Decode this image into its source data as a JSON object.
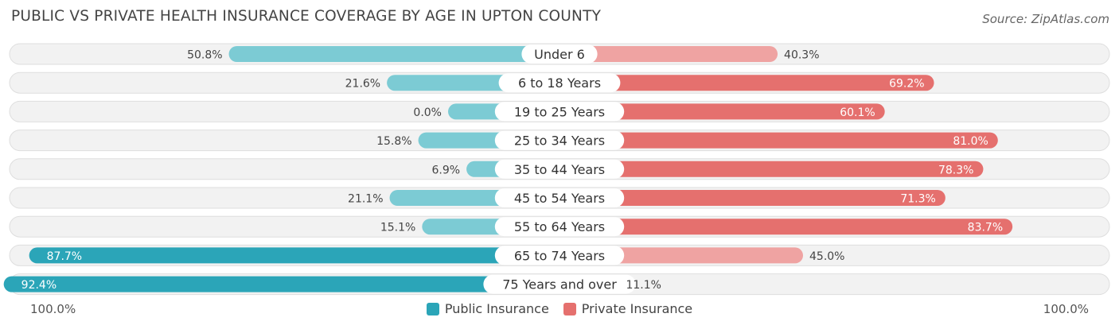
{
  "header": {
    "title": "PUBLIC VS PRIVATE HEALTH INSURANCE COVERAGE BY AGE IN UPTON COUNTY",
    "source": "Source: ZipAtlas.com"
  },
  "axis": {
    "left_label": "100.0%",
    "right_label": "100.0%"
  },
  "legend": {
    "public_label": "Public Insurance",
    "private_label": "Private Insurance"
  },
  "colors": {
    "public": "#2ba5b8",
    "public_light": "#7ccbd4",
    "private": "#e5706e",
    "private_light": "#efa3a2",
    "track": "#f2f2f2"
  },
  "chart_data": {
    "type": "bar",
    "orientation": "horizontal-diverging",
    "title": "PUBLIC VS PRIVATE HEALTH INSURANCE COVERAGE BY AGE IN UPTON COUNTY",
    "categories": [
      "Under 6",
      "6 to 18 Years",
      "19 to 25 Years",
      "25 to 34 Years",
      "35 to 44 Years",
      "45 to 54 Years",
      "55 to 64 Years",
      "65 to 74 Years",
      "75 Years and over"
    ],
    "series": [
      {
        "name": "Public Insurance",
        "values": [
          50.8,
          21.6,
          0.0,
          15.8,
          6.9,
          21.1,
          15.1,
          87.7,
          92.4
        ],
        "labels": [
          "50.8%",
          "21.6%",
          "0.0%",
          "15.8%",
          "6.9%",
          "21.1%",
          "15.1%",
          "87.7%",
          "92.4%"
        ]
      },
      {
        "name": "Private Insurance",
        "values": [
          40.3,
          69.2,
          60.1,
          81.0,
          78.3,
          71.3,
          83.7,
          45.0,
          11.1
        ],
        "labels": [
          "40.3%",
          "69.2%",
          "60.1%",
          "81.0%",
          "78.3%",
          "71.3%",
          "83.7%",
          "45.0%",
          "11.1%"
        ]
      }
    ],
    "xlim": [
      -100,
      100
    ],
    "legend_position": "bottom-center"
  }
}
